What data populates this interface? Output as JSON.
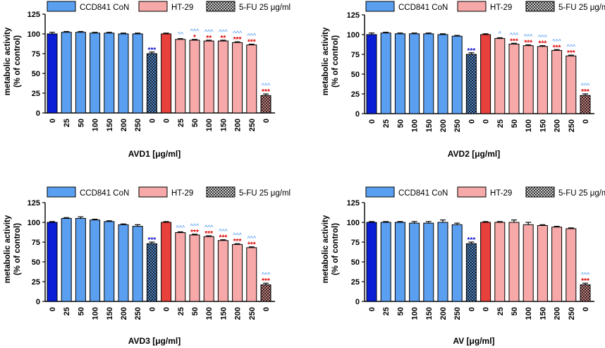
{
  "legend": {
    "items": [
      {
        "label": "CCD841 CoN",
        "pattern": "solid",
        "color": "#5b9ff0"
      },
      {
        "label": "HT-29",
        "pattern": "solid",
        "color": "#f7a8a8"
      },
      {
        "label": "5-FU 25 μg/ml",
        "pattern": "crosshatch",
        "color": "#ffffff"
      }
    ]
  },
  "colors": {
    "control_normal": "#0a1fd6",
    "normal": "#5b9ff0",
    "control_cancer": "#e8403a",
    "cancer": "#f7a8a8",
    "fu_normal": "#5b9ff0",
    "fu_cancer": "#f29a9a",
    "sig_red": "#e00000",
    "sig_blue": "#1010d0",
    "sig_hat": "#3a8ef0"
  },
  "chart_data": [
    {
      "id": "AVD1",
      "type": "bar",
      "categories": [
        "0",
        "25",
        "50",
        "100",
        "150",
        "200",
        "250",
        "0",
        "0",
        "25",
        "50",
        "100",
        "150",
        "200",
        "250",
        "0"
      ],
      "groups": [
        "control_normal",
        "normal",
        "normal",
        "normal",
        "normal",
        "normal",
        "normal",
        "fu_normal",
        "control_cancer",
        "cancer",
        "cancer",
        "cancer",
        "cancer",
        "cancer",
        "cancer",
        "fu_cancer"
      ],
      "values": [
        100,
        102,
        102,
        101,
        101,
        100,
        100,
        75,
        100,
        93,
        92,
        91,
        91,
        89,
        86,
        22
      ],
      "errors": [
        2,
        1,
        1,
        1,
        1,
        1,
        1,
        2,
        1,
        1,
        1,
        1,
        1,
        1,
        1,
        2
      ],
      "annot_star": [
        "",
        "",
        "",
        "",
        "",
        "",
        "",
        "***",
        "",
        "",
        "*",
        "**",
        "**",
        "***",
        "***",
        "***"
      ],
      "annot_hat": [
        "",
        "",
        "",
        "",
        "",
        "",
        "",
        "",
        "",
        "^^",
        "^^^",
        "^^^",
        "^^^",
        "^^^",
        "^^^",
        "^^^"
      ],
      "title": "",
      "xlabel": "AVD1 [μg/ml]",
      "ylabel_line1": "metabolic activity",
      "ylabel_line2": "(% of control)",
      "ylim": [
        0,
        125
      ],
      "yticks": [
        "0",
        "25",
        "50",
        "75",
        "100",
        "125"
      ]
    },
    {
      "id": "AVD2",
      "type": "bar",
      "categories": [
        "0",
        "25",
        "50",
        "100",
        "150",
        "200",
        "250",
        "0",
        "0",
        "25",
        "50",
        "100",
        "150",
        "200",
        "250",
        "0"
      ],
      "groups": [
        "control_normal",
        "normal",
        "normal",
        "normal",
        "normal",
        "normal",
        "normal",
        "fu_normal",
        "control_cancer",
        "cancer",
        "cancer",
        "cancer",
        "cancer",
        "cancer",
        "cancer",
        "fu_cancer"
      ],
      "values": [
        100,
        102,
        101,
        101,
        101,
        100,
        98,
        75,
        100,
        95,
        88,
        86,
        85,
        80,
        73,
        23
      ],
      "errors": [
        2,
        1,
        1,
        1,
        1,
        1,
        1,
        2,
        1,
        1,
        1,
        1,
        1,
        1,
        1,
        2
      ],
      "annot_star": [
        "",
        "",
        "",
        "",
        "",
        "",
        "",
        "***",
        "",
        "",
        "***",
        "***",
        "***",
        "***",
        "***",
        "***"
      ],
      "annot_hat": [
        "",
        "",
        "",
        "",
        "",
        "",
        "",
        "",
        "",
        "^",
        "^^^",
        "^^^",
        "^^^",
        "^^^",
        "^^^",
        "^^^"
      ],
      "title": "",
      "xlabel": "AVD2 [μg/ml]",
      "ylabel_line1": "metabolic activity",
      "ylabel_line2": "(% of control)",
      "ylim": [
        0,
        125
      ],
      "yticks": [
        "0",
        "25",
        "50",
        "75",
        "100",
        "125"
      ]
    },
    {
      "id": "AVD3",
      "type": "bar",
      "categories": [
        "0",
        "25",
        "50",
        "100",
        "150",
        "200",
        "250",
        "0",
        "0",
        "25",
        "50",
        "100",
        "150",
        "200",
        "250",
        "0"
      ],
      "groups": [
        "control_normal",
        "normal",
        "normal",
        "normal",
        "normal",
        "normal",
        "normal",
        "fu_normal",
        "control_cancer",
        "cancer",
        "cancer",
        "cancer",
        "cancer",
        "cancer",
        "cancer",
        "fu_cancer"
      ],
      "values": [
        100,
        105,
        105,
        103,
        101,
        97,
        95,
        73,
        100,
        87,
        84,
        82,
        77,
        72,
        68,
        21
      ],
      "errors": [
        1,
        1,
        2,
        1,
        1,
        1,
        2,
        2,
        1,
        1,
        1,
        1,
        1,
        1,
        1,
        2
      ],
      "annot_star": [
        "",
        "",
        "",
        "",
        "",
        "",
        "",
        "***",
        "",
        "",
        "***",
        "***",
        "***",
        "***",
        "***",
        "***"
      ],
      "annot_hat": [
        "",
        "",
        "",
        "",
        "",
        "",
        "",
        "",
        "",
        "^^^",
        "^^^",
        "^^^",
        "^^^",
        "^^^",
        "^^^",
        "^^^"
      ],
      "title": "",
      "xlabel": "AVD3 [μg/ml]",
      "ylabel_line1": "metabolic activity",
      "ylabel_line2": "(% of control)",
      "ylim": [
        0,
        125
      ],
      "yticks": [
        "0",
        "25",
        "50",
        "75",
        "100",
        "125"
      ]
    },
    {
      "id": "AV",
      "type": "bar",
      "categories": [
        "0",
        "25",
        "50",
        "100",
        "150",
        "200",
        "250",
        "0",
        "0",
        "25",
        "50",
        "100",
        "150",
        "200",
        "250",
        "0"
      ],
      "groups": [
        "control_normal",
        "normal",
        "normal",
        "normal",
        "normal",
        "normal",
        "normal",
        "fu_normal",
        "control_cancer",
        "cancer",
        "cancer",
        "cancer",
        "cancer",
        "cancer",
        "cancer",
        "fu_cancer"
      ],
      "values": [
        100,
        100,
        100,
        99,
        99,
        100,
        97,
        73,
        100,
        100,
        100,
        97,
        96,
        94,
        92,
        21
      ],
      "errors": [
        1,
        1,
        1,
        2,
        2,
        3,
        2,
        2,
        1,
        1,
        3,
        3,
        1,
        1,
        1,
        2
      ],
      "annot_star": [
        "",
        "",
        "",
        "",
        "",
        "",
        "",
        "***",
        "",
        "",
        "",
        "",
        "",
        "",
        "",
        "***"
      ],
      "annot_hat": [
        "",
        "",
        "",
        "",
        "",
        "",
        "",
        "",
        "",
        "",
        "",
        "",
        "",
        "",
        "",
        "^^^"
      ],
      "title": "",
      "xlabel": "AV [μg/ml]",
      "ylabel_line1": "metabolic activity",
      "ylabel_line2": "(% of control)",
      "ylim": [
        0,
        125
      ],
      "yticks": [
        "0",
        "25",
        "50",
        "75",
        "100",
        "125"
      ]
    }
  ]
}
